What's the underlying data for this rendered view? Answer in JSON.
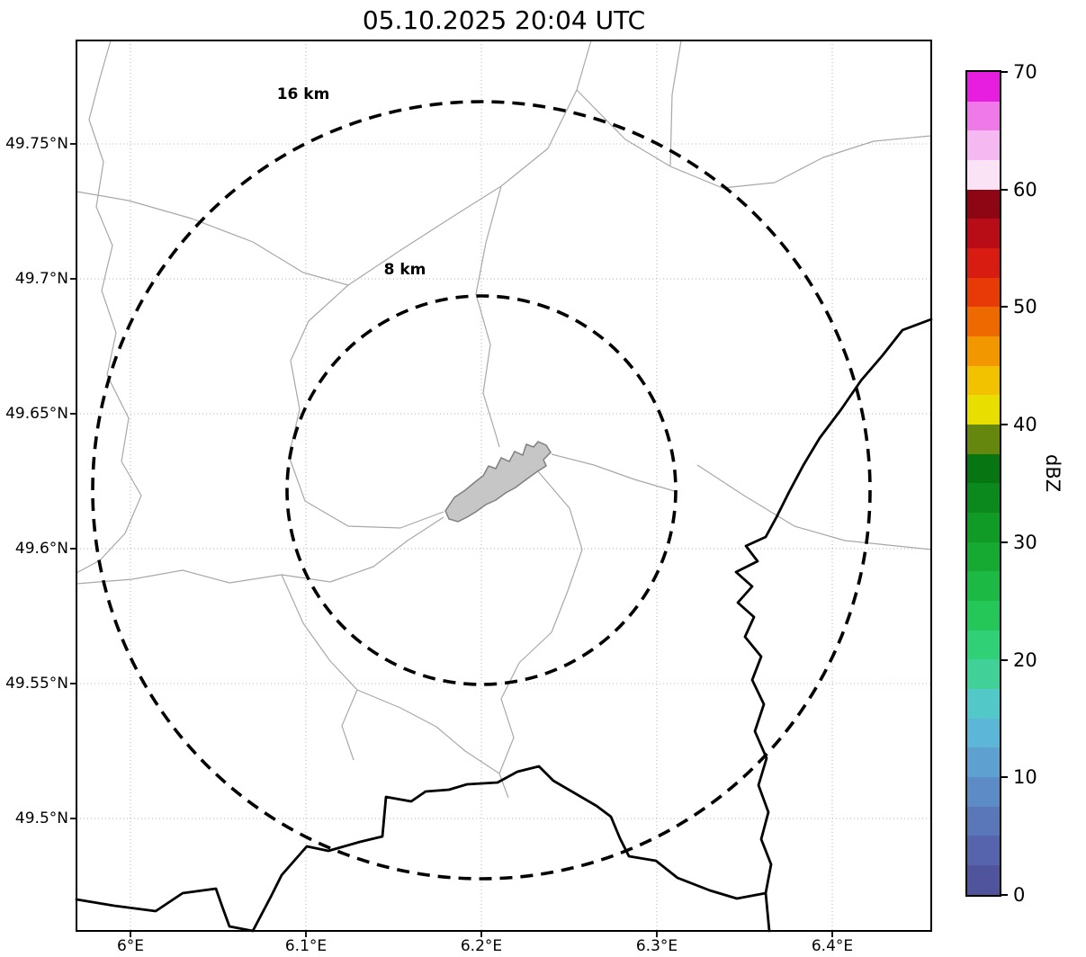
{
  "title": "05.10.2025 20:04 UTC",
  "map": {
    "x_tick_labels": [
      "6°E",
      "6.1°E",
      "6.2°E",
      "6.3°E",
      "6.4°E"
    ],
    "y_tick_labels": [
      "49.75°N",
      "49.7°N",
      "49.65°N",
      "49.6°N",
      "49.55°N",
      "49.5°N"
    ],
    "range_rings": [
      {
        "label": "16 km",
        "radius_km": 16
      },
      {
        "label": "8 km",
        "radius_km": 8
      }
    ]
  },
  "colorbar": {
    "label": "dBZ",
    "min": 0,
    "max": 70,
    "tick_labels": [
      "0",
      "10",
      "20",
      "30",
      "40",
      "50",
      "60",
      "70"
    ],
    "colors_bottom_to_top": [
      "#50549c",
      "#5663ad",
      "#5a77b9",
      "#5c8bc5",
      "#5ea0d0",
      "#5cb6d8",
      "#52c8c8",
      "#40d098",
      "#30d176",
      "#25c759",
      "#1cb944",
      "#16aa33",
      "#109a26",
      "#0c891c",
      "#087513",
      "#66870e",
      "#e8df00",
      "#f2c200",
      "#f29700",
      "#ee6900",
      "#e73a06",
      "#d81c12",
      "#b80d16",
      "#8e0513",
      "#f9e3f5",
      "#f6b8f0",
      "#ef79e8",
      "#e71ee0"
    ]
  }
}
